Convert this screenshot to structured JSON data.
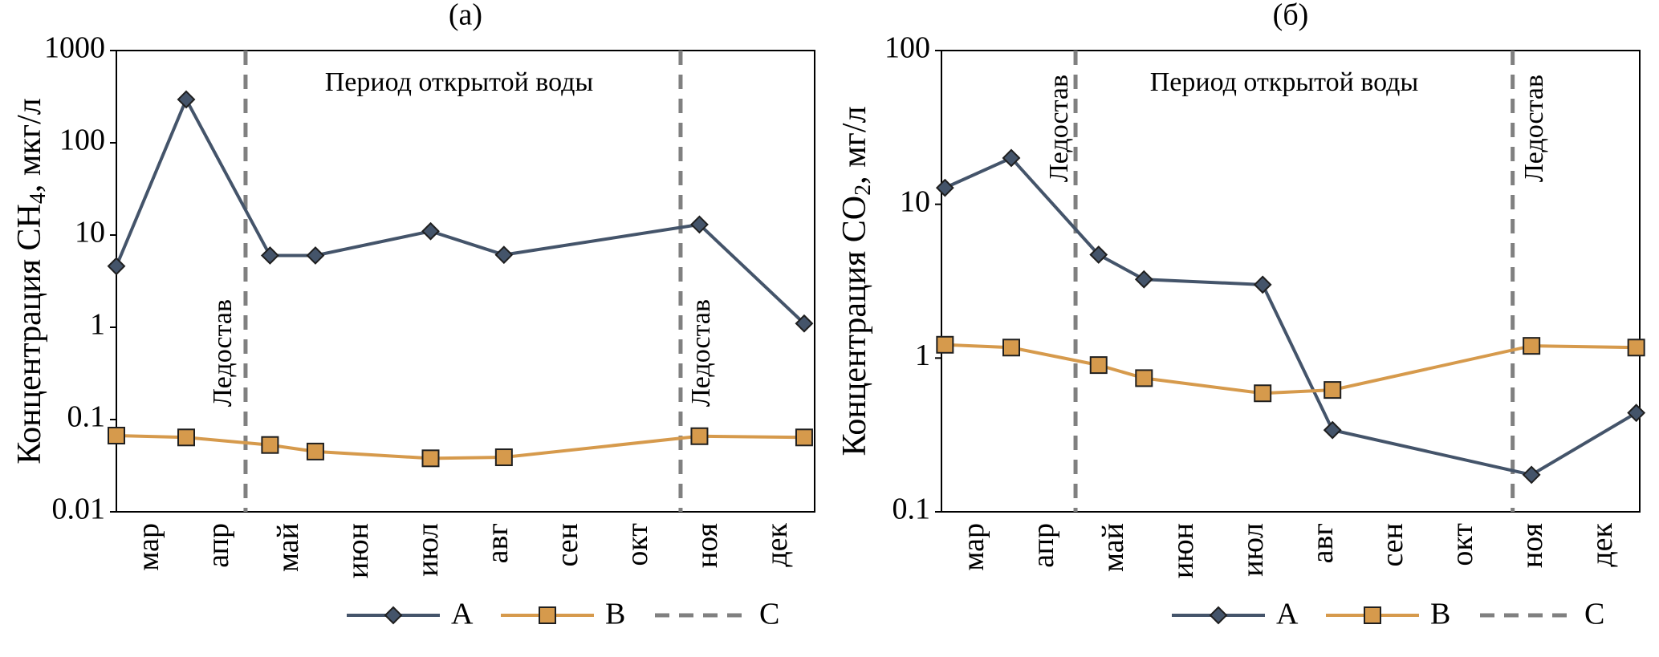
{
  "chart_data": [
    {
      "type": "line",
      "title": "(а)",
      "y_label_parts": [
        "Концентрация CH",
        "4",
        ", мкг/л"
      ],
      "annotation": "Период открытой воды",
      "ice_label": "Ледостав",
      "x": [
        0,
        1,
        2.2,
        2.85,
        4.5,
        5.55,
        8.35,
        9.85
      ],
      "xlim": [
        0,
        10
      ],
      "xticks": [
        {
          "value": 0.5,
          "label": "мар"
        },
        {
          "value": 1.5,
          "label": "апр"
        },
        {
          "value": 2.5,
          "label": "май"
        },
        {
          "value": 3.5,
          "label": "июн"
        },
        {
          "value": 4.5,
          "label": "июл"
        },
        {
          "value": 5.5,
          "label": "авг"
        },
        {
          "value": 6.5,
          "label": "сен"
        },
        {
          "value": 7.5,
          "label": "окт"
        },
        {
          "value": 8.5,
          "label": "ноя"
        },
        {
          "value": 9.5,
          "label": "дек"
        }
      ],
      "ylim": [
        0.01,
        1000
      ],
      "yticks": [
        0.01,
        0.1,
        1,
        10,
        100,
        1000
      ],
      "log_y": true,
      "series": [
        {
          "name": "A",
          "color": "#44546a",
          "marker": "diamond",
          "values": [
            4.6,
            295,
            6,
            6,
            11,
            6.1,
            13,
            1.1
          ]
        },
        {
          "name": "B",
          "color": "#d69a4c",
          "marker": "square",
          "values": [
            0.067,
            0.064,
            0.053,
            0.045,
            0.038,
            0.039,
            0.066,
            0.064
          ]
        }
      ],
      "ice_lines": {
        "name": "C",
        "color": "#808080",
        "x": [
          1.85,
          8.08
        ]
      }
    },
    {
      "type": "line",
      "title": "(б)",
      "y_label_parts": [
        "Концентрация CO",
        "2",
        ", мг/л"
      ],
      "annotation": "Период открытой воды",
      "ice_label": "Ледостав",
      "x": [
        0.05,
        1,
        2.25,
        2.9,
        4.6,
        5.6,
        8.45,
        9.95
      ],
      "xlim": [
        0,
        10
      ],
      "xticks": [
        {
          "value": 0.5,
          "label": "мар"
        },
        {
          "value": 1.5,
          "label": "апр"
        },
        {
          "value": 2.5,
          "label": "май"
        },
        {
          "value": 3.5,
          "label": "июн"
        },
        {
          "value": 4.5,
          "label": "июл"
        },
        {
          "value": 5.5,
          "label": "авг"
        },
        {
          "value": 6.5,
          "label": "сен"
        },
        {
          "value": 7.5,
          "label": "окт"
        },
        {
          "value": 8.5,
          "label": "ноя"
        },
        {
          "value": 9.5,
          "label": "дек"
        }
      ],
      "ylim": [
        0.1,
        100
      ],
      "yticks": [
        0.1,
        1,
        10,
        100
      ],
      "log_y": true,
      "series": [
        {
          "name": "A",
          "color": "#44546a",
          "marker": "diamond",
          "values": [
            12.8,
            20,
            4.7,
            3.25,
            3,
            0.34,
            0.174,
            0.44
          ]
        },
        {
          "name": "B",
          "color": "#d69a4c",
          "marker": "square",
          "values": [
            1.22,
            1.17,
            0.9,
            0.74,
            0.59,
            0.62,
            1.2,
            1.17
          ]
        }
      ],
      "ice_lines": {
        "name": "C",
        "color": "#808080",
        "x": [
          1.92,
          8.18
        ]
      }
    }
  ]
}
